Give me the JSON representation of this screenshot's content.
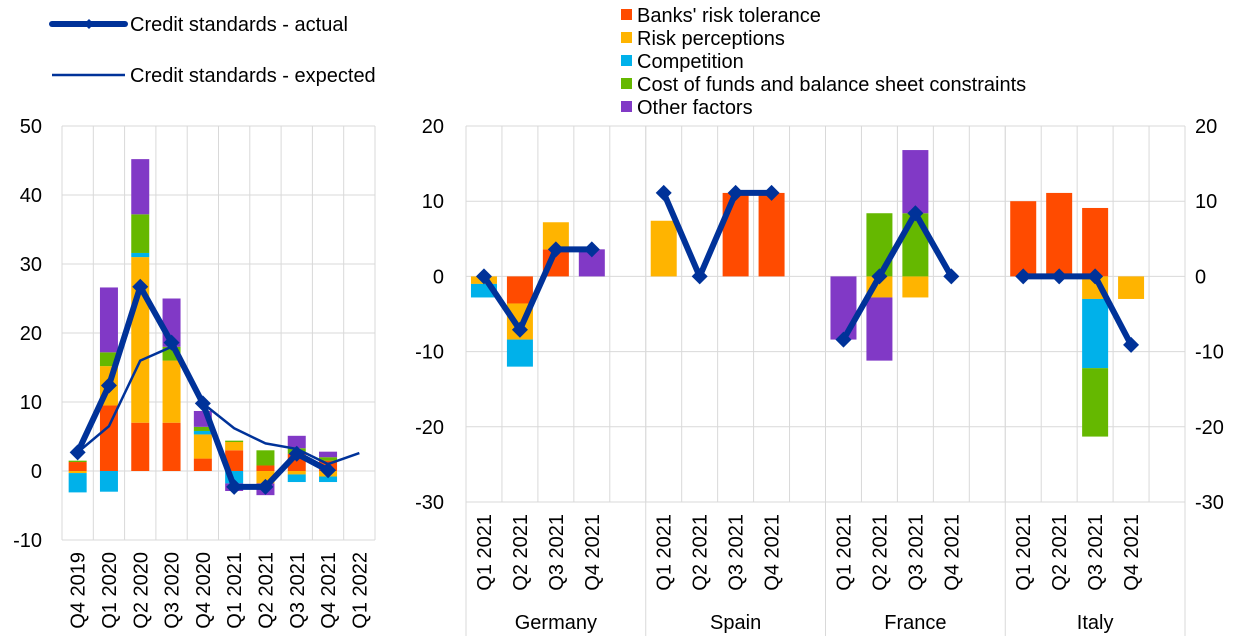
{
  "colors": {
    "banks_risk_tolerance": "#FF4B00",
    "risk_perceptions": "#FFB400",
    "competition": "#00B1EA",
    "cost_of_funds": "#65B800",
    "other_factors": "#8139C6",
    "credit_standards": "#003299",
    "grid": "#D9D9D9"
  },
  "legend": {
    "lines": [
      {
        "key": "actual",
        "label": "Credit standards - actual",
        "style": "thick-diamond"
      },
      {
        "key": "expected",
        "label": "Credit standards - expected",
        "style": "thin"
      }
    ],
    "factors": [
      {
        "key": "banks_risk_tolerance",
        "label": "Banks' risk tolerance"
      },
      {
        "key": "risk_perceptions",
        "label": "Risk perceptions"
      },
      {
        "key": "competition",
        "label": "Competition"
      },
      {
        "key": "cost_of_funds",
        "label": "Cost of funds and balance sheet constraints"
      },
      {
        "key": "other_factors",
        "label": "Other factors"
      }
    ]
  },
  "chart_data": [
    {
      "type": "bar",
      "stacked": true,
      "panel": "euro-area",
      "ylim": [
        -10,
        50
      ],
      "yticks": [
        -10,
        0,
        10,
        20,
        30,
        40,
        50
      ],
      "categories": [
        "Q4 2019",
        "Q1 2020",
        "Q2 2020",
        "Q3 2020",
        "Q4 2020",
        "Q1 2021",
        "Q2 2021",
        "Q3 2021",
        "Q4 2021",
        "Q1 2022"
      ],
      "series": [
        {
          "key": "banks_risk_tolerance",
          "values": [
            1.3,
            9.5,
            7.0,
            7.0,
            1.8,
            3.0,
            0.8,
            2.5,
            1.5,
            null
          ]
        },
        {
          "key": "risk_perceptions",
          "values": [
            -0.3,
            5.7,
            24.0,
            9.0,
            3.5,
            1.2,
            -1.8,
            -0.5,
            -0.8,
            null
          ]
        },
        {
          "key": "competition",
          "values": [
            -2.8,
            -3.0,
            0.6,
            0.0,
            0.5,
            -1.8,
            0.0,
            -1.1,
            -0.8,
            null
          ]
        },
        {
          "key": "cost_of_funds",
          "values": [
            0.2,
            2.0,
            5.6,
            2.0,
            0.6,
            0.2,
            2.2,
            0.8,
            0.5,
            null
          ]
        },
        {
          "key": "other_factors",
          "values": [
            0.0,
            9.4,
            8.0,
            7.0,
            2.3,
            -1.1,
            -1.7,
            1.8,
            0.8,
            null
          ]
        }
      ],
      "lines": [
        {
          "key": "actual",
          "values": [
            2.7,
            12.4,
            26.7,
            18.6,
            9.8,
            -2.3,
            -2.3,
            2.5,
            0.1,
            null
          ]
        },
        {
          "key": "expected",
          "values": [
            2.7,
            6.5,
            16.0,
            18.0,
            9.8,
            6.2,
            4.0,
            3.2,
            1.0,
            2.6
          ]
        }
      ]
    },
    {
      "type": "bar",
      "stacked": true,
      "panel": "countries",
      "ylim": [
        -30,
        20
      ],
      "yticks": [
        -30,
        -20,
        -10,
        0,
        10,
        20
      ],
      "quarters": [
        "Q1 2021",
        "Q2 2021",
        "Q3 2021",
        "Q4 2021"
      ],
      "groups": [
        {
          "name": "Germany",
          "bars": [
            {
              "banks_risk_tolerance": 0,
              "risk_perceptions": -1.0,
              "competition": -1.8,
              "cost_of_funds": 0,
              "other_factors": 0
            },
            {
              "banks_risk_tolerance": -3.6,
              "risk_perceptions": -4.8,
              "competition": -3.6,
              "cost_of_funds": 0,
              "other_factors": 0
            },
            {
              "banks_risk_tolerance": 3.6,
              "risk_perceptions": 3.6,
              "competition": 0,
              "cost_of_funds": 0,
              "other_factors": 0
            },
            {
              "banks_risk_tolerance": 0,
              "risk_perceptions": 0,
              "competition": 0,
              "cost_of_funds": 0,
              "other_factors": 3.6
            }
          ],
          "line": [
            0,
            -7.1,
            3.6,
            3.6
          ]
        },
        {
          "name": "Spain",
          "bars": [
            {
              "banks_risk_tolerance": 0,
              "risk_perceptions": 7.4,
              "competition": 0,
              "cost_of_funds": 0,
              "other_factors": 0
            },
            {
              "banks_risk_tolerance": 0,
              "risk_perceptions": 0,
              "competition": 0,
              "cost_of_funds": 0,
              "other_factors": 0
            },
            {
              "banks_risk_tolerance": 11.1,
              "risk_perceptions": 0,
              "competition": 0,
              "cost_of_funds": 0,
              "other_factors": 0
            },
            {
              "banks_risk_tolerance": 11.1,
              "risk_perceptions": 0,
              "competition": 0,
              "cost_of_funds": 0,
              "other_factors": 0
            }
          ],
          "line": [
            11.1,
            0,
            11.1,
            11.1
          ]
        },
        {
          "name": "France",
          "bars": [
            {
              "banks_risk_tolerance": 0,
              "risk_perceptions": 0,
              "competition": 0,
              "cost_of_funds": 0,
              "other_factors": -8.4
            },
            {
              "banks_risk_tolerance": 0,
              "risk_perceptions": -2.8,
              "competition": 0,
              "cost_of_funds": 8.4,
              "other_factors": -8.4
            },
            {
              "banks_risk_tolerance": 0,
              "risk_perceptions": -2.8,
              "competition": 0,
              "cost_of_funds": 8.4,
              "other_factors": 8.4
            },
            {
              "banks_risk_tolerance": 0,
              "risk_perceptions": 0,
              "competition": 0,
              "cost_of_funds": 0,
              "other_factors": 0
            }
          ],
          "line": [
            -8.4,
            0,
            8.4,
            0
          ]
        },
        {
          "name": "Italy",
          "bars": [
            {
              "banks_risk_tolerance": 10.0,
              "risk_perceptions": 0,
              "competition": 0,
              "cost_of_funds": 0,
              "other_factors": 0
            },
            {
              "banks_risk_tolerance": 11.1,
              "risk_perceptions": 0,
              "competition": 0,
              "cost_of_funds": 0,
              "other_factors": 0
            },
            {
              "banks_risk_tolerance": 9.1,
              "risk_perceptions": -3.0,
              "competition": -9.2,
              "cost_of_funds": -9.1,
              "other_factors": 0
            },
            {
              "banks_risk_tolerance": 0,
              "risk_perceptions": -3.0,
              "competition": 0,
              "cost_of_funds": 0,
              "other_factors": 0
            }
          ],
          "line": [
            0,
            0,
            0,
            -9.1
          ]
        }
      ]
    }
  ]
}
